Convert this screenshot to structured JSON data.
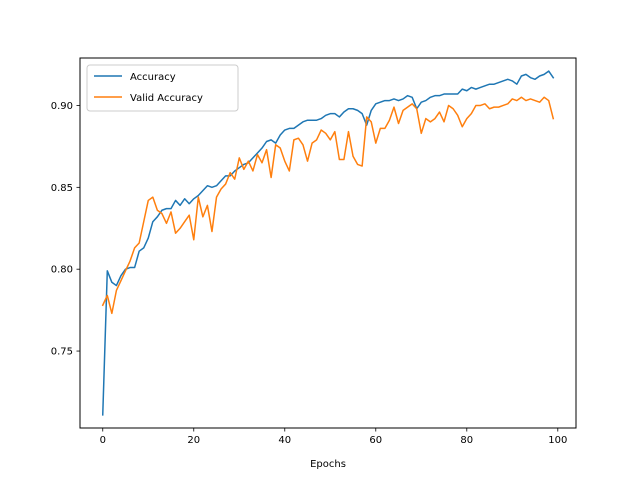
{
  "chart_data": {
    "type": "line",
    "title": "",
    "xlabel": "Epochs",
    "ylabel": "",
    "xlim": [
      -5,
      104
    ],
    "ylim": [
      0.703,
      0.929
    ],
    "xticks": [
      0,
      20,
      40,
      60,
      80,
      100
    ],
    "yticks": [
      0.75,
      0.8,
      0.85,
      0.9
    ],
    "xtick_labels": [
      "0",
      "20",
      "40",
      "60",
      "80",
      "100"
    ],
    "ytick_labels": [
      "0.75",
      "0.80",
      "0.85",
      "0.90"
    ],
    "grid": false,
    "legend": "top-left",
    "series": [
      {
        "name": "Accuracy",
        "color": "#1f77b4",
        "x": [
          0,
          1,
          2,
          3,
          4,
          5,
          6,
          7,
          8,
          9,
          10,
          11,
          12,
          13,
          14,
          15,
          16,
          17,
          18,
          19,
          20,
          21,
          22,
          23,
          24,
          25,
          26,
          27,
          28,
          29,
          30,
          31,
          32,
          33,
          34,
          35,
          36,
          37,
          38,
          39,
          40,
          41,
          42,
          43,
          44,
          45,
          46,
          47,
          48,
          49,
          50,
          51,
          52,
          53,
          54,
          55,
          56,
          57,
          58,
          59,
          60,
          61,
          62,
          63,
          64,
          65,
          66,
          67,
          68,
          69,
          70,
          71,
          72,
          73,
          74,
          75,
          76,
          77,
          78,
          79,
          80,
          81,
          82,
          83,
          84,
          85,
          86,
          87,
          88,
          89,
          90,
          91,
          92,
          93,
          94,
          95,
          96,
          97,
          98,
          99
        ],
        "values": [
          0.711,
          0.799,
          0.792,
          0.79,
          0.796,
          0.8,
          0.801,
          0.801,
          0.811,
          0.813,
          0.819,
          0.829,
          0.832,
          0.836,
          0.837,
          0.837,
          0.842,
          0.839,
          0.843,
          0.84,
          0.843,
          0.845,
          0.848,
          0.851,
          0.85,
          0.851,
          0.854,
          0.857,
          0.857,
          0.86,
          0.862,
          0.864,
          0.865,
          0.868,
          0.871,
          0.874,
          0.878,
          0.879,
          0.877,
          0.882,
          0.885,
          0.886,
          0.886,
          0.888,
          0.89,
          0.891,
          0.891,
          0.891,
          0.892,
          0.894,
          0.895,
          0.895,
          0.893,
          0.896,
          0.898,
          0.898,
          0.897,
          0.895,
          0.888,
          0.897,
          0.901,
          0.902,
          0.903,
          0.903,
          0.904,
          0.903,
          0.904,
          0.906,
          0.905,
          0.898,
          0.902,
          0.903,
          0.905,
          0.906,
          0.906,
          0.907,
          0.907,
          0.907,
          0.907,
          0.91,
          0.909,
          0.911,
          0.91,
          0.911,
          0.912,
          0.913,
          0.913,
          0.914,
          0.915,
          0.916,
          0.915,
          0.913,
          0.918,
          0.919,
          0.917,
          0.916,
          0.918,
          0.919,
          0.921,
          0.917
        ]
      },
      {
        "name": "Valid Accuracy",
        "color": "#ff7f0e",
        "x": [
          0,
          1,
          2,
          3,
          4,
          5,
          6,
          7,
          8,
          9,
          10,
          11,
          12,
          13,
          14,
          15,
          16,
          17,
          18,
          19,
          20,
          21,
          22,
          23,
          24,
          25,
          26,
          27,
          28,
          29,
          30,
          31,
          32,
          33,
          34,
          35,
          36,
          37,
          38,
          39,
          40,
          41,
          42,
          43,
          44,
          45,
          46,
          47,
          48,
          49,
          50,
          51,
          52,
          53,
          54,
          55,
          56,
          57,
          58,
          59,
          60,
          61,
          62,
          63,
          64,
          65,
          66,
          67,
          68,
          69,
          70,
          71,
          72,
          73,
          74,
          75,
          76,
          77,
          78,
          79,
          80,
          81,
          82,
          83,
          84,
          85,
          86,
          87,
          88,
          89,
          90,
          91,
          92,
          93,
          94,
          95,
          96,
          97,
          98,
          99
        ],
        "values": [
          0.778,
          0.784,
          0.773,
          0.787,
          0.793,
          0.799,
          0.805,
          0.813,
          0.816,
          0.829,
          0.842,
          0.844,
          0.836,
          0.834,
          0.828,
          0.835,
          0.822,
          0.825,
          0.829,
          0.833,
          0.818,
          0.844,
          0.832,
          0.839,
          0.823,
          0.844,
          0.849,
          0.852,
          0.859,
          0.855,
          0.868,
          0.861,
          0.866,
          0.86,
          0.87,
          0.865,
          0.873,
          0.856,
          0.876,
          0.874,
          0.866,
          0.86,
          0.879,
          0.88,
          0.876,
          0.866,
          0.877,
          0.879,
          0.885,
          0.883,
          0.879,
          0.884,
          0.867,
          0.867,
          0.884,
          0.869,
          0.864,
          0.863,
          0.893,
          0.89,
          0.877,
          0.886,
          0.886,
          0.891,
          0.899,
          0.889,
          0.897,
          0.899,
          0.901,
          0.898,
          0.883,
          0.892,
          0.89,
          0.892,
          0.896,
          0.89,
          0.9,
          0.898,
          0.894,
          0.887,
          0.892,
          0.895,
          0.9,
          0.9,
          0.901,
          0.898,
          0.899,
          0.899,
          0.9,
          0.901,
          0.904,
          0.903,
          0.905,
          0.903,
          0.904,
          0.903,
          0.902,
          0.905,
          0.903,
          0.892
        ]
      }
    ]
  }
}
